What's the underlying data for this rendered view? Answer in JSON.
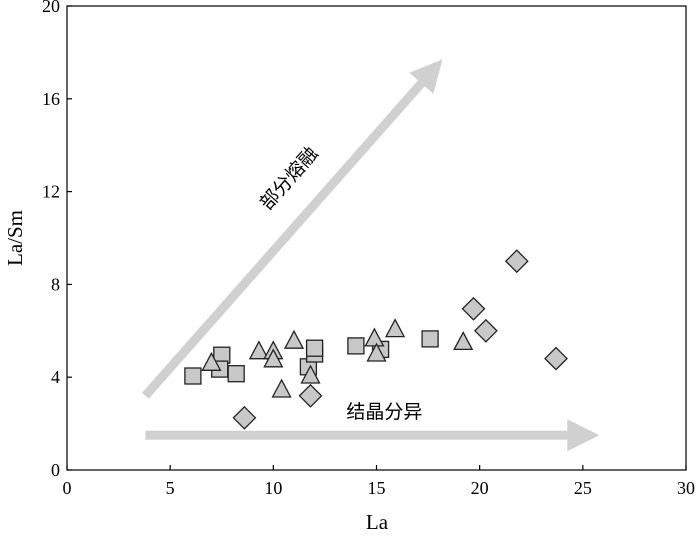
{
  "chart_data": {
    "type": "scatter",
    "xlabel": "La",
    "ylabel": "La/Sm",
    "xlim": [
      0,
      30
    ],
    "ylim": [
      0,
      20
    ],
    "xticks": [
      "0",
      "5",
      "10",
      "15",
      "20",
      "25",
      "30"
    ],
    "yticks": [
      "0",
      "4",
      "8",
      "12",
      "16",
      "20"
    ],
    "grid": false,
    "legend": "none",
    "colors": {
      "marker_fill": "#c8c8c8",
      "marker_stroke": "#222222",
      "arrow": "#d0d0d0"
    },
    "series": [
      {
        "marker": "square",
        "points": [
          [
            6.1,
            4.05
          ],
          [
            7.5,
            4.95
          ],
          [
            7.4,
            4.35
          ],
          [
            8.2,
            4.15
          ],
          [
            11.7,
            4.45
          ],
          [
            12.0,
            5.0
          ],
          [
            12.0,
            5.25
          ],
          [
            14.0,
            5.35
          ],
          [
            15.2,
            5.2
          ],
          [
            17.6,
            5.65
          ]
        ]
      },
      {
        "marker": "triangle",
        "points": [
          [
            7.0,
            4.6
          ],
          [
            9.3,
            5.1
          ],
          [
            10.0,
            5.1
          ],
          [
            10.0,
            4.75
          ],
          [
            10.4,
            3.45
          ],
          [
            11.0,
            5.55
          ],
          [
            11.8,
            4.05
          ],
          [
            14.9,
            5.65
          ],
          [
            15.0,
            5.0
          ],
          [
            15.9,
            6.05
          ],
          [
            19.2,
            5.5
          ]
        ]
      },
      {
        "marker": "diamond",
        "points": [
          [
            8.6,
            2.25
          ],
          [
            11.8,
            3.2
          ],
          [
            19.7,
            6.95
          ],
          [
            20.3,
            6.0
          ],
          [
            21.8,
            9.0
          ],
          [
            23.7,
            4.8
          ]
        ]
      }
    ],
    "annotations": [
      {
        "text": "部分熔融",
        "arrow_from": [
          3.8,
          3.2
        ],
        "arrow_to": [
          18.2,
          17.7
        ]
      },
      {
        "text": "结晶分异",
        "arrow_from": [
          3.8,
          1.5
        ],
        "arrow_to": [
          25.8,
          1.5
        ]
      }
    ]
  }
}
